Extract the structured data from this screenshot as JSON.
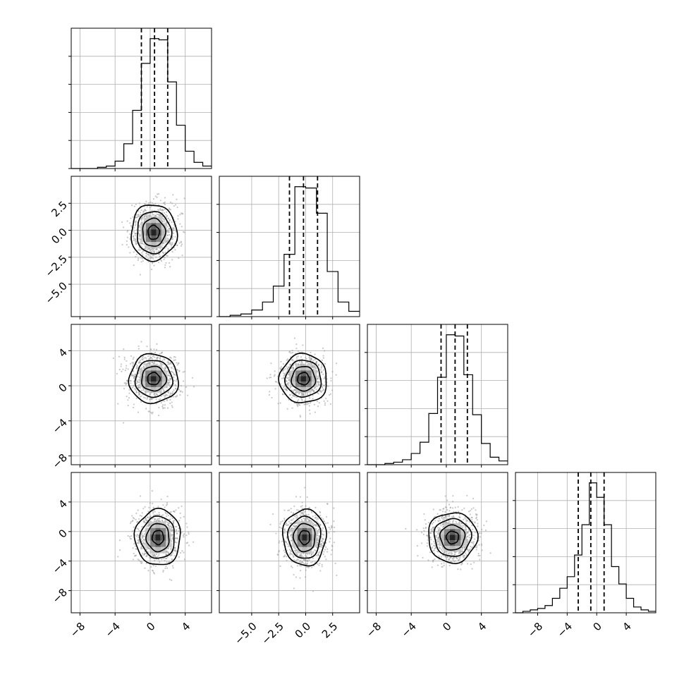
{
  "chart_data": {
    "type": "corner",
    "grid": true,
    "colors": {
      "line": "#000000",
      "grid": "#b0b0b0",
      "scatter": "#9a9a9a",
      "density_low": "#f2f2f2",
      "density_high": "#000000"
    },
    "params": [
      {
        "name": "",
        "range": [
          -9,
          7
        ],
        "ticks": [
          -8,
          -4,
          0,
          4
        ],
        "tick_labels": [
          "−8",
          "−4",
          "0",
          "4"
        ]
      },
      {
        "name": "",
        "range": [
          -8,
          5
        ],
        "ticks": [
          -5.0,
          -2.5,
          0.0,
          2.5
        ],
        "tick_labels": [
          "−5.0",
          "−2.5",
          "0.0",
          "2.5"
        ]
      },
      {
        "name": "",
        "range": [
          -9,
          7
        ],
        "ticks": [
          -8,
          -4,
          0,
          4
        ],
        "tick_labels": [
          "−8",
          "−4",
          "0",
          "4"
        ]
      },
      {
        "name": "",
        "range": [
          -11,
          8
        ],
        "ticks": [
          -8,
          -4,
          0,
          4
        ],
        "tick_labels": [
          "−8",
          "−4",
          "0",
          "4"
        ]
      }
    ],
    "histograms": [
      {
        "param": 0,
        "quantiles": [
          -1.0,
          0.5,
          2.0
        ],
        "bins": [
          -9,
          -8,
          -7,
          -6,
          -5,
          -4,
          -3,
          -2,
          -1,
          0,
          1,
          2,
          3,
          4,
          5,
          6,
          7
        ],
        "counts": [
          0,
          0,
          0,
          1,
          2,
          6,
          20,
          47,
          85,
          105,
          104,
          70,
          35,
          14,
          5,
          2
        ]
      },
      {
        "param": 1,
        "quantiles": [
          -1.5,
          -0.2,
          1.1
        ],
        "bins": [
          -8,
          -7,
          -6,
          -5,
          -4,
          -3,
          -2,
          -1,
          0,
          1,
          2,
          3,
          4,
          5
        ],
        "counts": [
          0,
          1,
          2,
          5,
          11,
          23,
          47,
          98,
          97,
          78,
          34,
          11,
          4
        ]
      },
      {
        "param": 2,
        "quantiles": [
          -0.6,
          1.0,
          2.4
        ],
        "bins": [
          -9,
          -8,
          -7,
          -6,
          -5,
          -4,
          -3,
          -2,
          -1,
          0,
          1,
          2,
          3,
          4,
          5,
          6,
          7
        ],
        "counts": [
          0,
          0,
          1,
          2,
          4,
          9,
          18,
          41,
          70,
          104,
          103,
          72,
          40,
          17,
          6,
          3
        ]
      },
      {
        "param": 3,
        "quantiles": [
          -2.5,
          -0.8,
          1.0
        ],
        "bins": [
          -11,
          -10,
          -9,
          -8,
          -7,
          -6,
          -5,
          -4,
          -3,
          -2,
          -1,
          0,
          1,
          2,
          3,
          4,
          5,
          6,
          7,
          8
        ],
        "counts": [
          0,
          1,
          2,
          3,
          5,
          10,
          17,
          25,
          40,
          61,
          90,
          80,
          61,
          32,
          20,
          10,
          4,
          2,
          1
        ]
      }
    ],
    "pairs": [
      {
        "x": 0,
        "y": 1,
        "center": [
          0.4,
          -0.2
        ],
        "sigma": [
          1.3,
          1.3
        ]
      },
      {
        "x": 0,
        "y": 2,
        "center": [
          0.4,
          0.8
        ],
        "sigma": [
          1.4,
          1.4
        ]
      },
      {
        "x": 1,
        "y": 2,
        "center": [
          -0.2,
          0.8
        ],
        "sigma": [
          1.1,
          1.4
        ]
      },
      {
        "x": 0,
        "y": 3,
        "center": [
          0.9,
          -0.8
        ],
        "sigma": [
          1.3,
          1.9
        ]
      },
      {
        "x": 1,
        "y": 3,
        "center": [
          -0.1,
          -0.8
        ],
        "sigma": [
          1.0,
          1.9
        ]
      },
      {
        "x": 2,
        "y": 3,
        "center": [
          0.7,
          -0.8
        ],
        "sigma": [
          1.4,
          1.7
        ]
      }
    ],
    "contour_levels_sigma": [
      0.5,
      1.0,
      1.5,
      2.0
    ]
  }
}
